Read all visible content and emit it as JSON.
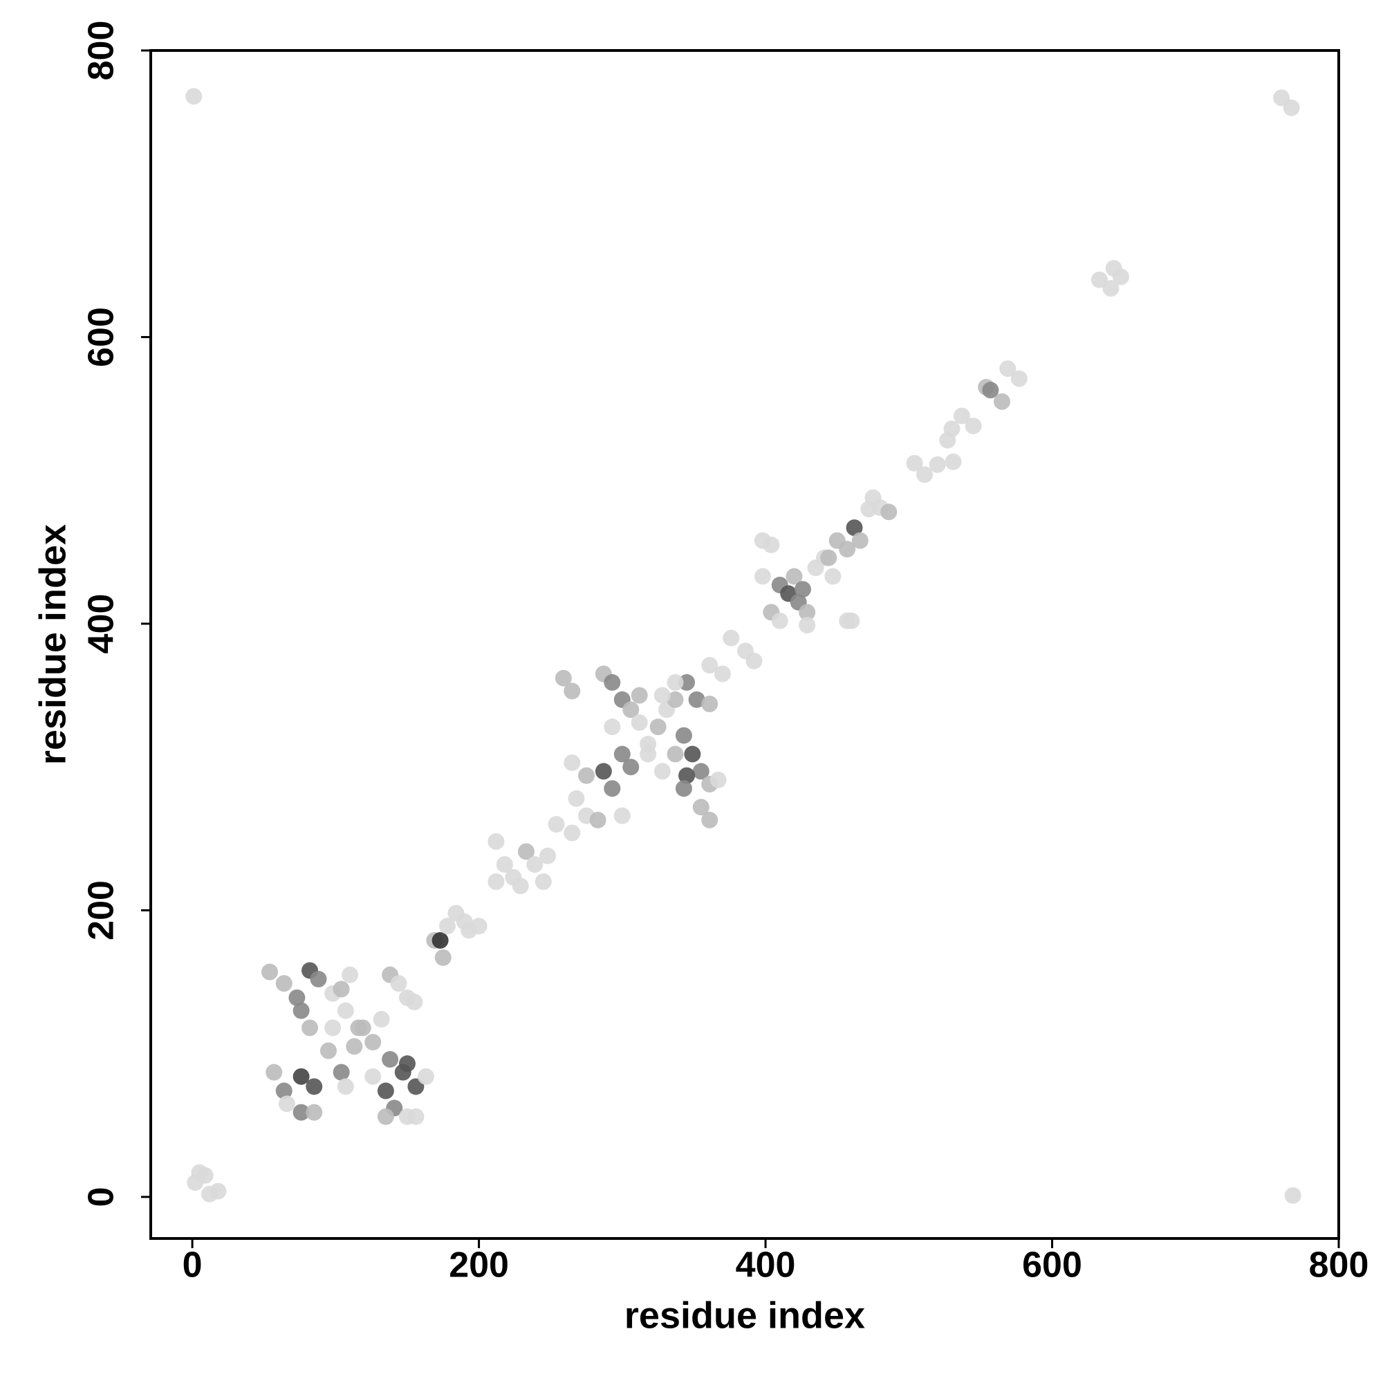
{
  "chart_data": {
    "type": "scatter",
    "xlabel": "residue index",
    "ylabel": "residue index",
    "xlim": [
      -29,
      800
    ],
    "ylim": [
      -29,
      800
    ],
    "xticks": [
      0,
      200,
      400,
      600,
      800
    ],
    "yticks": [
      0,
      200,
      400,
      600,
      800
    ],
    "x": [
      1,
      768,
      2,
      5,
      9,
      12,
      18,
      760,
      767,
      633,
      641,
      643,
      648,
      554,
      557,
      565,
      569,
      577,
      520,
      531,
      537,
      545,
      530,
      527,
      504,
      511,
      475,
      480,
      486,
      472,
      398,
      404,
      462,
      457,
      441,
      450,
      410,
      416,
      423,
      429,
      420,
      435,
      404,
      410,
      429,
      398,
      447,
      457,
      460,
      426,
      444,
      466,
      376,
      386,
      361,
      370,
      392,
      259,
      265,
      287,
      293,
      300,
      306,
      312,
      293,
      300,
      306,
      287,
      293,
      275,
      268,
      265,
      275,
      283,
      300,
      325,
      331,
      337,
      345,
      352,
      361,
      343,
      349,
      355,
      361,
      345,
      343,
      355,
      361,
      337,
      328,
      318,
      328,
      337,
      367,
      312,
      318,
      212,
      218,
      224,
      233,
      239,
      245,
      212,
      229,
      248,
      254,
      265,
      169,
      173,
      178,
      184,
      190,
      200,
      175,
      193,
      54,
      64,
      73,
      82,
      88,
      98,
      107,
      116,
      126,
      138,
      147,
      156,
      163,
      138,
      144,
      150,
      155,
      57,
      64,
      66,
      76,
      85,
      76,
      85,
      104,
      95,
      113,
      126,
      135,
      141,
      150,
      156,
      135,
      107,
      119,
      132,
      98,
      82,
      76,
      110,
      104,
      150
    ],
    "y": [
      768,
      1,
      10,
      17,
      15,
      2,
      4,
      767,
      760,
      640,
      634,
      648,
      642,
      565,
      563,
      555,
      578,
      571,
      511,
      513,
      545,
      538,
      536,
      528,
      512,
      504,
      488,
      481,
      478,
      480,
      458,
      455,
      467,
      452,
      446,
      458,
      427,
      421,
      415,
      408,
      433,
      439,
      408,
      402,
      399,
      433,
      433,
      402,
      402,
      424,
      446,
      458,
      390,
      381,
      371,
      365,
      374,
      362,
      353,
      365,
      359,
      347,
      340,
      331,
      328,
      309,
      300,
      297,
      285,
      294,
      278,
      303,
      266,
      263,
      266,
      328,
      340,
      347,
      359,
      347,
      344,
      322,
      309,
      297,
      288,
      294,
      285,
      272,
      263,
      309,
      297,
      316,
      350,
      359,
      291,
      350,
      309,
      248,
      232,
      223,
      241,
      232,
      220,
      220,
      217,
      238,
      260,
      254,
      179,
      179,
      189,
      198,
      192,
      189,
      167,
      186,
      157,
      149,
      139,
      158,
      152,
      142,
      130,
      118,
      108,
      96,
      87,
      77,
      84,
      155,
      149,
      139,
      136,
      87,
      74,
      65,
      59,
      59,
      84,
      77,
      87,
      102,
      105,
      84,
      74,
      62,
      56,
      56,
      56,
      77,
      118,
      124,
      118,
      118,
      130,
      155,
      145,
      93
    ],
    "colors": [
      "#d9d9d9",
      "#d9d9d9",
      "#d9d9d9",
      "#d9d9d9",
      "#d9d9d9",
      "#d9d9d9",
      "#d9d9d9",
      "#d9d9d9",
      "#d9d9d9",
      "#d9d9d9",
      "#d9d9d9",
      "#d9d9d9",
      "#d9d9d9",
      "#bbbbbb",
      "#888888",
      "#bbbbbb",
      "#d9d9d9",
      "#d9d9d9",
      "#d9d9d9",
      "#d9d9d9",
      "#d9d9d9",
      "#d9d9d9",
      "#d9d9d9",
      "#d9d9d9",
      "#d9d9d9",
      "#d9d9d9",
      "#d9d9d9",
      "#d9d9d9",
      "#bbbbbb",
      "#d9d9d9",
      "#d9d9d9",
      "#d9d9d9",
      "#555555",
      "#bbbbbb",
      "#d9d9d9",
      "#bbbbbb",
      "#888888",
      "#555555",
      "#888888",
      "#bbbbbb",
      "#bbbbbb",
      "#d9d9d9",
      "#bbbbbb",
      "#d9d9d9",
      "#d9d9d9",
      "#d9d9d9",
      "#d9d9d9",
      "#d9d9d9",
      "#d9d9d9",
      "#888888",
      "#bbbbbb",
      "#bbbbbb",
      "#d9d9d9",
      "#d9d9d9",
      "#d9d9d9",
      "#d9d9d9",
      "#d9d9d9",
      "#bbbbbb",
      "#bbbbbb",
      "#bbbbbb",
      "#888888",
      "#888888",
      "#bbbbbb",
      "#d9d9d9",
      "#d9d9d9",
      "#888888",
      "#888888",
      "#555555",
      "#888888",
      "#bbbbbb",
      "#d9d9d9",
      "#d9d9d9",
      "#d9d9d9",
      "#bbbbbb",
      "#d9d9d9",
      "#bbbbbb",
      "#d9d9d9",
      "#bbbbbb",
      "#888888",
      "#888888",
      "#bbbbbb",
      "#888888",
      "#555555",
      "#888888",
      "#bbbbbb",
      "#555555",
      "#888888",
      "#bbbbbb",
      "#bbbbbb",
      "#bbbbbb",
      "#d9d9d9",
      "#d9d9d9",
      "#d9d9d9",
      "#d9d9d9",
      "#d9d9d9",
      "#bbbbbb",
      "#d9d9d9",
      "#d9d9d9",
      "#d9d9d9",
      "#d9d9d9",
      "#bbbbbb",
      "#d9d9d9",
      "#d9d9d9",
      "#d9d9d9",
      "#d9d9d9",
      "#d9d9d9",
      "#d9d9d9",
      "#d9d9d9",
      "#bbbbbb",
      "#333333",
      "#d9d9d9",
      "#d9d9d9",
      "#d9d9d9",
      "#d9d9d9",
      "#bbbbbb",
      "#d9d9d9",
      "#bbbbbb",
      "#bbbbbb",
      "#888888",
      "#555555",
      "#888888",
      "#d9d9d9",
      "#d9d9d9",
      "#bbbbbb",
      "#bbbbbb",
      "#888888",
      "#555555",
      "#555555",
      "#d9d9d9",
      "#bbbbbb",
      "#d9d9d9",
      "#d9d9d9",
      "#d9d9d9",
      "#bbbbbb",
      "#888888",
      "#d9d9d9",
      "#888888",
      "#bbbbbb",
      "#444444",
      "#555555",
      "#888888",
      "#bbbbbb",
      "#bbbbbb",
      "#d9d9d9",
      "#555555",
      "#888888",
      "#d9d9d9",
      "#d9d9d9",
      "#bbbbbb",
      "#d9d9d9",
      "#bbbbbb",
      "#d9d9d9",
      "#d9d9d9",
      "#bbbbbb",
      "#888888",
      "#d9d9d9",
      "#bbbbbb",
      "#555555"
    ]
  }
}
